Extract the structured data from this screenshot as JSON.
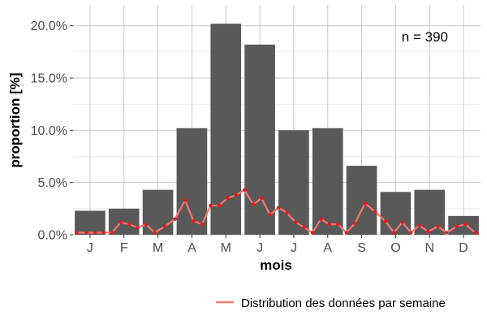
{
  "chart_data": {
    "type": "bar",
    "categories": [
      "J",
      "F",
      "M",
      "A",
      "M",
      "J",
      "J",
      "A",
      "S",
      "O",
      "N",
      "D"
    ],
    "values": [
      2.3,
      2.5,
      4.3,
      10.2,
      20.2,
      18.2,
      10.0,
      10.2,
      6.6,
      4.1,
      4.3,
      1.8
    ],
    "xlabel": "mois",
    "ylabel": "proportion [%]",
    "ylim": [
      0,
      22
    ],
    "yticks": [
      0,
      5,
      10,
      15,
      20
    ],
    "ytick_labels": [
      "0.0%",
      "5.0%",
      "10.0%",
      "15.0%",
      "20.0%"
    ],
    "annotation": "n = 390",
    "grid": true,
    "legend_position": "bottom-right",
    "colors": {
      "bars": "#595959",
      "line": "#f8766d",
      "points": "#e31a1c",
      "grid": "#c8c8c8",
      "text": "#4d4d4d"
    },
    "weekly_series": {
      "name": "Distribution des données par semaine",
      "x": [
        0.1,
        0.4,
        0.65,
        0.9,
        1.15,
        1.4,
        1.65,
        1.9,
        2.15,
        2.4,
        2.7,
        3.0,
        3.3,
        3.55,
        3.8,
        4.05,
        4.3,
        4.55,
        4.8,
        5.05,
        5.3,
        5.55,
        5.8,
        6.05,
        6.3,
        6.55,
        6.8,
        7.05,
        7.3,
        7.55,
        7.8,
        8.05,
        8.3,
        8.6,
        8.9,
        9.2,
        9.45,
        9.7,
        9.95,
        10.2,
        10.45,
        10.75,
        11.0,
        11.3,
        11.55,
        11.85
      ],
      "y": [
        0.2,
        0.2,
        0.2,
        0.2,
        0.2,
        1.2,
        1.0,
        0.7,
        1.0,
        0.2,
        0.8,
        1.5,
        3.3,
        1.3,
        1.0,
        2.8,
        2.8,
        3.5,
        3.8,
        4.3,
        2.9,
        3.5,
        1.9,
        2.6,
        2.1,
        1.2,
        0.7,
        0.2,
        1.5,
        1.0,
        1.0,
        0.2,
        1.1,
        3.0,
        2.2,
        1.3,
        0.2,
        1.2,
        0.2,
        0.9,
        0.3,
        0.8,
        0.2,
        0.8,
        1.0,
        0.2
      ]
    }
  }
}
